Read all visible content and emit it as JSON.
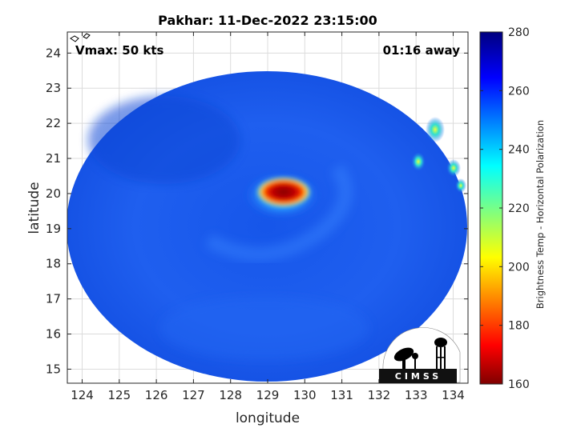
{
  "chart_data": {
    "type": "heatmap",
    "title": "Pakhar: 11-Dec-2022 23:15:00",
    "xlabel": "longitude",
    "ylabel": "latitude",
    "xlim": [
      123.6,
      134.4
    ],
    "ylim": [
      14.6,
      24.6
    ],
    "xticks": [
      124,
      125,
      126,
      127,
      128,
      129,
      130,
      131,
      132,
      133,
      134
    ],
    "yticks": [
      15,
      16,
      17,
      18,
      19,
      20,
      21,
      22,
      23,
      24
    ],
    "grid": true,
    "annotations": {
      "vmax": "Vmax: 50 kts",
      "time_away": "01:16 away"
    },
    "storm_center": {
      "lon": 129.3,
      "lat": 19.9
    },
    "colorbar": {
      "label": "Brightness Temp - Horizontal Polarization",
      "range": [
        160,
        280
      ],
      "ticks": [
        160,
        180,
        200,
        220,
        240,
        260,
        280
      ],
      "colormap": "jet"
    },
    "logo_text": "CIMSS"
  },
  "colors": {
    "background": "#ffffff",
    "axis": "#262626",
    "grid": "#dcdcdc"
  }
}
